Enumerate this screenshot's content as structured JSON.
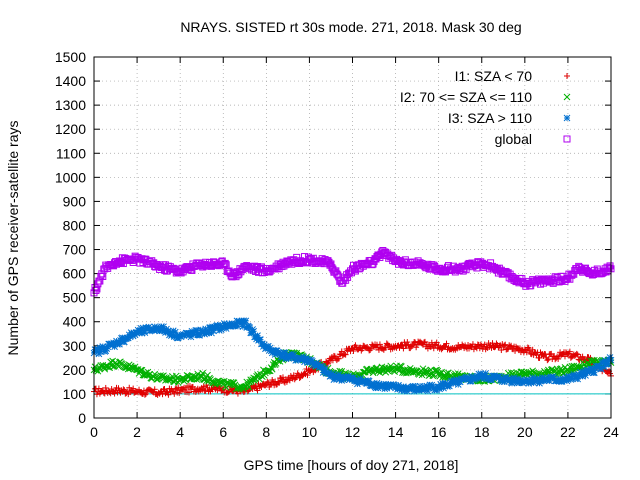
{
  "chart_data": {
    "type": "scatter",
    "title": "NRAYS. SISTED rt 30s mode. 271, 2018. Mask 30 deg",
    "xlabel": "GPS time [hours of doy 271, 2018]",
    "ylabel": "Number of GPS receiver-satellite rays",
    "xlim": [
      0,
      24
    ],
    "ylim": [
      0,
      1500
    ],
    "xticks": [
      "0",
      "2",
      "4",
      "6",
      "8",
      "10",
      "12",
      "14",
      "16",
      "18",
      "20",
      "22",
      "24"
    ],
    "yticks": [
      "0",
      "100",
      "200",
      "300",
      "400",
      "500",
      "600",
      "700",
      "800",
      "900",
      "1000",
      "1100",
      "1200",
      "1300",
      "1400",
      "1500"
    ],
    "grid": true,
    "legend_position": "top-right",
    "reference_line": {
      "y": 100,
      "color": "#00c0c0"
    },
    "series": [
      {
        "name": "I1: SZA < 70",
        "color": "#e00000",
        "marker": "plus",
        "x": [
          0,
          1,
          2,
          3,
          4,
          5,
          6,
          7,
          8,
          9,
          10,
          11,
          12,
          13,
          14,
          15,
          16,
          17,
          18,
          19,
          20,
          21,
          22,
          23,
          24
        ],
        "y": [
          110,
          115,
          110,
          105,
          115,
          125,
          120,
          110,
          140,
          160,
          195,
          240,
          290,
          295,
          300,
          305,
          300,
          295,
          300,
          295,
          285,
          250,
          265,
          240,
          175
        ]
      },
      {
        "name": "I2: 70 <= SZA <= 110",
        "color": "#00b000",
        "marker": "cross",
        "x": [
          0,
          1,
          2,
          3,
          4,
          5,
          6,
          7,
          8,
          9,
          10,
          11,
          12,
          13,
          14,
          15,
          16,
          17,
          18,
          19,
          20,
          21,
          22,
          23,
          24
        ],
        "y": [
          200,
          230,
          200,
          165,
          160,
          175,
          140,
          130,
          195,
          270,
          240,
          190,
          170,
          200,
          205,
          195,
          185,
          170,
          160,
          170,
          185,
          185,
          200,
          225,
          230
        ]
      },
      {
        "name": "I3: SZA > 110",
        "color": "#0070d0",
        "marker": "star",
        "x": [
          0,
          1,
          2,
          3,
          4,
          5,
          6,
          7,
          8,
          9,
          10,
          11,
          12,
          13,
          14,
          15,
          16,
          17,
          18,
          19,
          20,
          21,
          22,
          23,
          24
        ],
        "y": [
          270,
          310,
          355,
          375,
          340,
          355,
          380,
          395,
          290,
          255,
          240,
          175,
          160,
          140,
          125,
          120,
          130,
          150,
          175,
          160,
          155,
          160,
          160,
          190,
          240
        ]
      },
      {
        "name": "global",
        "color": "#b000f0",
        "marker": "square",
        "x": [
          0,
          0.5,
          1,
          1.5,
          2,
          3,
          4,
          5,
          6,
          6.5,
          7,
          8,
          9,
          10,
          11,
          11.5,
          12,
          13,
          13.5,
          14,
          15,
          16,
          17,
          18,
          18.5,
          19,
          20,
          21,
          22,
          22.5,
          23,
          24
        ],
        "y": [
          520,
          620,
          650,
          655,
          660,
          630,
          610,
          640,
          640,
          590,
          630,
          610,
          650,
          660,
          640,
          560,
          620,
          650,
          690,
          650,
          640,
          620,
          620,
          640,
          630,
          600,
          560,
          570,
          580,
          630,
          600,
          620
        ]
      }
    ]
  }
}
